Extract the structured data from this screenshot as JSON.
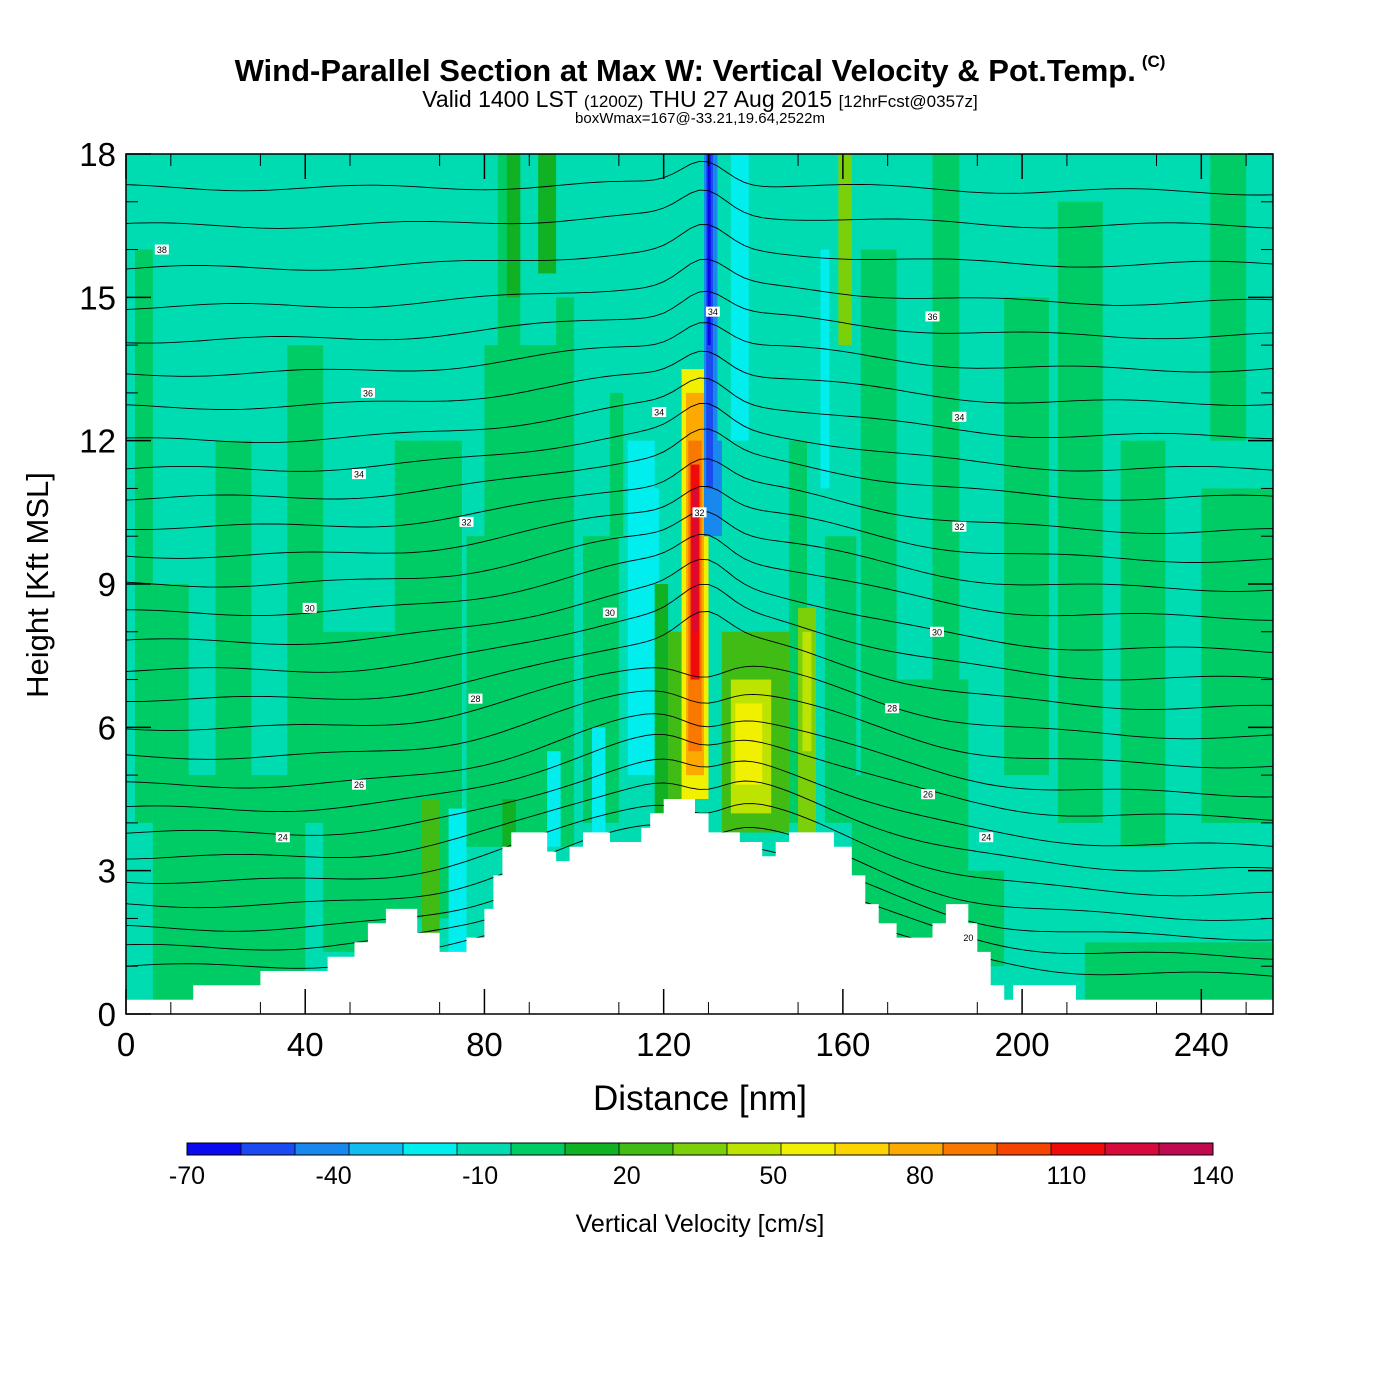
{
  "header": {
    "title": "Wind-Parallel Section at Max W: Vertical Velocity & Pot.Temp.",
    "copyright": "(C)",
    "valid_prefix": "Valid 1400 LST",
    "utc": "(1200Z)",
    "valid_date": "THU 27 Aug 2015",
    "forecast": "[12hrFcst@0357z]",
    "boxwmax": "boxWmax=167@-33.21,19.64,2522m"
  },
  "chart_data": {
    "type": "heatmap",
    "xlabel": "Distance [nm]",
    "ylabel": "Height [Kft MSL]",
    "xlim": [
      0,
      256
    ],
    "ylim": [
      0,
      18
    ],
    "xticks": [
      0,
      40,
      80,
      120,
      160,
      200,
      240
    ],
    "yticks": [
      0,
      3,
      6,
      9,
      12,
      15,
      18
    ],
    "colorbar": {
      "label": "Vertical Velocity [cm/s]",
      "min": -70,
      "step": 10,
      "tick_labels": [
        "-70",
        "-40",
        "-10",
        "20",
        "50",
        "80",
        "110",
        "140"
      ],
      "colors": [
        "#0a0aef",
        "#1a4af0",
        "#1888ee",
        "#10bcf0",
        "#00eeee",
        "#00dcb2",
        "#00cc66",
        "#10b224",
        "#40bc14",
        "#7cd00a",
        "#bce400",
        "#f0f000",
        "#fcd400",
        "#fcaa00",
        "#f87800",
        "#f44400",
        "#f00a0a",
        "#d80a3c",
        "#c00a50"
      ]
    },
    "contour_field": "Potential Temperature",
    "contour_labels": [
      {
        "text": "38",
        "x": 8,
        "y": 16.0
      },
      {
        "text": "36",
        "x": 180,
        "y": 14.6
      },
      {
        "text": "36",
        "x": 54,
        "y": 13.0
      },
      {
        "text": "34",
        "x": 131,
        "y": 14.7
      },
      {
        "text": "34",
        "x": 119,
        "y": 12.6
      },
      {
        "text": "34",
        "x": 186,
        "y": 12.5
      },
      {
        "text": "34",
        "x": 52,
        "y": 11.3
      },
      {
        "text": "32",
        "x": 128,
        "y": 10.5
      },
      {
        "text": "32",
        "x": 76,
        "y": 10.3
      },
      {
        "text": "32",
        "x": 186,
        "y": 10.2
      },
      {
        "text": "30",
        "x": 41,
        "y": 8.5
      },
      {
        "text": "30",
        "x": 108,
        "y": 8.4
      },
      {
        "text": "30",
        "x": 181,
        "y": 8.0
      },
      {
        "text": "28",
        "x": 78,
        "y": 6.6
      },
      {
        "text": "28",
        "x": 171,
        "y": 6.4
      },
      {
        "text": "26",
        "x": 52,
        "y": 4.8
      },
      {
        "text": "26",
        "x": 179,
        "y": 4.6
      },
      {
        "text": "24",
        "x": 35,
        "y": 3.7
      },
      {
        "text": "24",
        "x": 192,
        "y": 3.7
      },
      {
        "text": "20",
        "x": 188,
        "y": 1.6
      }
    ],
    "cells": [
      {
        "x": [
          0,
          256
        ],
        "y": [
          0,
          18
        ],
        "level": 5
      },
      {
        "x": [
          2,
          6
        ],
        "y": [
          4,
          16
        ],
        "level": 6
      },
      {
        "x": [
          6,
          14
        ],
        "y": [
          0.3,
          9
        ],
        "level": 6
      },
      {
        "x": [
          10,
          40
        ],
        "y": [
          0.3,
          5
        ],
        "level": 6
      },
      {
        "x": [
          20,
          28
        ],
        "y": [
          5,
          12
        ],
        "level": 6
      },
      {
        "x": [
          36,
          44
        ],
        "y": [
          4,
          14
        ],
        "level": 6
      },
      {
        "x": [
          44,
          60
        ],
        "y": [
          1.3,
          8
        ],
        "level": 6
      },
      {
        "x": [
          60,
          75
        ],
        "y": [
          2,
          12
        ],
        "level": 6
      },
      {
        "x": [
          76,
          88
        ],
        "y": [
          3.5,
          10
        ],
        "level": 6
      },
      {
        "x": [
          80,
          100
        ],
        "y": [
          3.5,
          14
        ],
        "level": 6
      },
      {
        "x": [
          83,
          88
        ],
        "y": [
          14,
          18
        ],
        "level": 6
      },
      {
        "x": [
          85,
          88
        ],
        "y": [
          15,
          18
        ],
        "level": 7
      },
      {
        "x": [
          92,
          96
        ],
        "y": [
          15.5,
          18
        ],
        "level": 7
      },
      {
        "x": [
          96,
          100
        ],
        "y": [
          11,
          15
        ],
        "level": 6
      },
      {
        "x": [
          102,
          110
        ],
        "y": [
          4,
          10
        ],
        "level": 6
      },
      {
        "x": [
          108,
          111
        ],
        "y": [
          10,
          13
        ],
        "level": 6
      },
      {
        "x": [
          111,
          114
        ],
        "y": [
          5,
          15
        ],
        "level": 5
      },
      {
        "x": [
          112,
          118
        ],
        "y": [
          5,
          12
        ],
        "level": 4
      },
      {
        "x": [
          117,
          119
        ],
        "y": [
          9,
          11
        ],
        "level": 4
      },
      {
        "x": [
          118,
          121
        ],
        "y": [
          4,
          9
        ],
        "level": 7
      },
      {
        "x": [
          121,
          124
        ],
        "y": [
          4.5,
          8
        ],
        "level": 8
      },
      {
        "x": [
          124,
          130
        ],
        "y": [
          4.5,
          13.5
        ],
        "level": 11
      },
      {
        "x": [
          125,
          129
        ],
        "y": [
          5,
          13
        ],
        "level": 13
      },
      {
        "x": [
          125.5,
          128.5
        ],
        "y": [
          5.5,
          12
        ],
        "level": 14
      },
      {
        "x": [
          126,
          128
        ],
        "y": [
          7,
          11.5
        ],
        "level": 16
      },
      {
        "x": [
          126.5,
          127.5
        ],
        "y": [
          8,
          11
        ],
        "level": 17
      },
      {
        "x": [
          129,
          133
        ],
        "y": [
          10,
          18
        ],
        "level": 2
      },
      {
        "x": [
          129.5,
          131
        ],
        "y": [
          11,
          18
        ],
        "level": 1
      },
      {
        "x": [
          129.8,
          130.5
        ],
        "y": [
          14,
          18
        ],
        "level": 0
      },
      {
        "x": [
          132,
          135
        ],
        "y": [
          12,
          18
        ],
        "level": 5
      },
      {
        "x": [
          135,
          139
        ],
        "y": [
          12,
          18
        ],
        "level": 4
      },
      {
        "x": [
          133,
          148
        ],
        "y": [
          3.8,
          8
        ],
        "level": 8
      },
      {
        "x": [
          135,
          144
        ],
        "y": [
          4.2,
          7
        ],
        "level": 10
      },
      {
        "x": [
          136,
          142
        ],
        "y": [
          4.8,
          6.5
        ],
        "level": 11
      },
      {
        "x": [
          148,
          152
        ],
        "y": [
          4,
          12
        ],
        "level": 6
      },
      {
        "x": [
          150,
          154
        ],
        "y": [
          3.8,
          8.5
        ],
        "level": 9
      },
      {
        "x": [
          151,
          153
        ],
        "y": [
          5.5,
          8
        ],
        "level": 10
      },
      {
        "x": [
          154,
          158
        ],
        "y": [
          10,
          17
        ],
        "level": 5
      },
      {
        "x": [
          155,
          157
        ],
        "y": [
          11,
          16
        ],
        "level": 4
      },
      {
        "x": [
          159,
          162
        ],
        "y": [
          14,
          18
        ],
        "level": 9
      },
      {
        "x": [
          156,
          163
        ],
        "y": [
          4,
          10
        ],
        "level": 6
      },
      {
        "x": [
          162,
          180
        ],
        "y": [
          1.5,
          5
        ],
        "level": 6
      },
      {
        "x": [
          164,
          172
        ],
        "y": [
          5,
          16
        ],
        "level": 6
      },
      {
        "x": [
          172,
          188
        ],
        "y": [
          1.5,
          7
        ],
        "level": 6
      },
      {
        "x": [
          180,
          186
        ],
        "y": [
          7,
          18
        ],
        "level": 6
      },
      {
        "x": [
          188,
          196
        ],
        "y": [
          1,
          3
        ],
        "level": 6
      },
      {
        "x": [
          196,
          206
        ],
        "y": [
          5,
          15
        ],
        "level": 6
      },
      {
        "x": [
          208,
          218
        ],
        "y": [
          4,
          17
        ],
        "level": 6
      },
      {
        "x": [
          214,
          256
        ],
        "y": [
          0.3,
          1.5
        ],
        "level": 6
      },
      {
        "x": [
          222,
          232
        ],
        "y": [
          3.5,
          12
        ],
        "level": 6
      },
      {
        "x": [
          240,
          256
        ],
        "y": [
          4,
          11
        ],
        "level": 6
      },
      {
        "x": [
          242,
          250
        ],
        "y": [
          12,
          18
        ],
        "level": 6
      },
      {
        "x": [
          66,
          70
        ],
        "y": [
          1.2,
          4.5
        ],
        "level": 8
      },
      {
        "x": [
          72,
          76
        ],
        "y": [
          1.3,
          4.3
        ],
        "level": 4
      },
      {
        "x": [
          84,
          87
        ],
        "y": [
          2.5,
          4.5
        ],
        "level": 7
      },
      {
        "x": [
          94,
          97
        ],
        "y": [
          3.5,
          5.5
        ],
        "level": 4
      },
      {
        "x": [
          104,
          107
        ],
        "y": [
          3.5,
          6
        ],
        "level": 4
      }
    ],
    "terrain_step": [
      [
        0,
        0.3
      ],
      [
        15,
        0.3
      ],
      [
        15,
        0.6
      ],
      [
        30,
        0.6
      ],
      [
        30,
        0.9
      ],
      [
        45,
        0.9
      ],
      [
        45,
        1.2
      ],
      [
        51,
        1.2
      ],
      [
        51,
        1.5
      ],
      [
        54,
        1.5
      ],
      [
        54,
        1.9
      ],
      [
        58,
        1.9
      ],
      [
        58,
        2.2
      ],
      [
        65,
        2.2
      ],
      [
        65,
        1.7
      ],
      [
        70,
        1.7
      ],
      [
        70,
        1.3
      ],
      [
        76,
        1.3
      ],
      [
        76,
        1.6
      ],
      [
        80,
        1.6
      ],
      [
        80,
        2.2
      ],
      [
        82,
        2.2
      ],
      [
        82,
        2.9
      ],
      [
        84,
        2.9
      ],
      [
        84,
        3.5
      ],
      [
        86,
        3.5
      ],
      [
        86,
        3.8
      ],
      [
        94,
        3.8
      ],
      [
        94,
        3.4
      ],
      [
        96,
        3.4
      ],
      [
        96,
        3.2
      ],
      [
        99,
        3.2
      ],
      [
        99,
        3.5
      ],
      [
        102,
        3.5
      ],
      [
        102,
        3.8
      ],
      [
        108,
        3.8
      ],
      [
        108,
        3.6
      ],
      [
        115,
        3.6
      ],
      [
        115,
        3.9
      ],
      [
        117,
        3.9
      ],
      [
        117,
        4.2
      ],
      [
        120,
        4.2
      ],
      [
        120,
        4.5
      ],
      [
        127,
        4.5
      ],
      [
        127,
        4.2
      ],
      [
        130,
        4.2
      ],
      [
        130,
        3.8
      ],
      [
        137,
        3.8
      ],
      [
        137,
        3.6
      ],
      [
        142,
        3.6
      ],
      [
        142,
        3.3
      ],
      [
        145,
        3.3
      ],
      [
        145,
        3.6
      ],
      [
        148,
        3.6
      ],
      [
        148,
        3.8
      ],
      [
        158,
        3.8
      ],
      [
        158,
        3.5
      ],
      [
        162,
        3.5
      ],
      [
        162,
        2.9
      ],
      [
        165,
        2.9
      ],
      [
        165,
        2.3
      ],
      [
        168,
        2.3
      ],
      [
        168,
        1.9
      ],
      [
        172,
        1.9
      ],
      [
        172,
        1.6
      ],
      [
        180,
        1.6
      ],
      [
        180,
        1.9
      ],
      [
        183,
        1.9
      ],
      [
        183,
        2.3
      ],
      [
        188,
        2.3
      ],
      [
        188,
        1.9
      ],
      [
        190,
        1.9
      ],
      [
        190,
        1.3
      ],
      [
        193,
        1.3
      ],
      [
        193,
        0.6
      ],
      [
        196,
        0.6
      ],
      [
        196,
        0.3
      ],
      [
        198,
        0.3
      ],
      [
        198,
        0.6
      ],
      [
        212,
        0.6
      ],
      [
        212,
        0.3
      ],
      [
        256,
        0.3
      ]
    ],
    "isentropes": [
      {
        "y0": 1.0,
        "y1": 0.8
      },
      {
        "y0": 1.4,
        "y1": 1.2
      },
      {
        "y0": 1.8,
        "y1": 1.6
      },
      {
        "y0": 2.3,
        "y1": 2.0
      },
      {
        "y0": 2.8,
        "y1": 2.5
      },
      {
        "y0": 3.3,
        "y1": 3.0
      },
      {
        "y0": 3.8,
        "y1": 3.5
      },
      {
        "y0": 4.3,
        "y1": 4.1
      },
      {
        "y0": 4.8,
        "y1": 4.6
      },
      {
        "y0": 5.4,
        "y1": 5.2
      },
      {
        "y0": 6.0,
        "y1": 5.8
      },
      {
        "y0": 6.6,
        "y1": 6.4
      },
      {
        "y0": 7.2,
        "y1": 7.0
      },
      {
        "y0": 7.8,
        "y1": 7.6
      },
      {
        "y0": 8.4,
        "y1": 8.3
      },
      {
        "y0": 9.0,
        "y1": 8.9
      },
      {
        "y0": 9.6,
        "y1": 9.5
      },
      {
        "y0": 10.2,
        "y1": 10.1
      },
      {
        "y0": 10.8,
        "y1": 10.8
      },
      {
        "y0": 11.4,
        "y1": 11.4
      },
      {
        "y0": 12.0,
        "y1": 12.1
      },
      {
        "y0": 12.7,
        "y1": 12.8
      },
      {
        "y0": 13.4,
        "y1": 13.5
      },
      {
        "y0": 14.1,
        "y1": 14.2
      },
      {
        "y0": 14.8,
        "y1": 14.9
      },
      {
        "y0": 15.6,
        "y1": 15.7
      },
      {
        "y0": 16.5,
        "y1": 16.5
      },
      {
        "y0": 17.3,
        "y1": 17.2
      }
    ]
  }
}
